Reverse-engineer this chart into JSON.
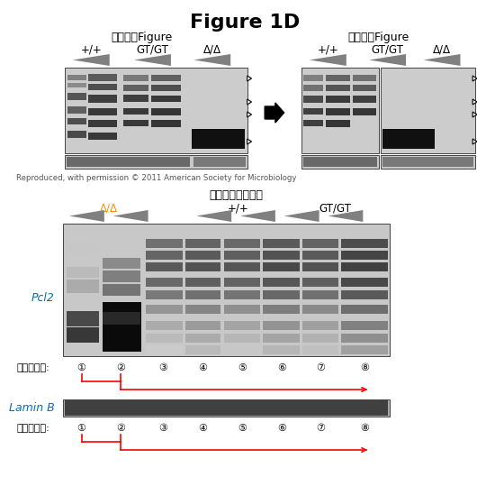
{
  "title": "Figure 1D",
  "title_fontsize": 16,
  "title_fontweight": "bold",
  "section1_label": "論文掛載Figure",
  "section2_label": "訂正したFigure",
  "orig_label": "オリジナルデータ",
  "genotype_labels": [
    "+/+",
    "GT/GT",
    "Δ/Δ"
  ],
  "genotype_labels_orig": [
    "Δ/Δ",
    "+/+",
    "GT/GT"
  ],
  "lane_label": "レーン番号:",
  "lane_numbers": [
    "①",
    "②",
    "③",
    "④",
    "⑤",
    "⑥",
    "⑦",
    "⑧"
  ],
  "pcl2_label": "Pcl2",
  "laminb_label": "Lamin B",
  "copyright_text": "Reproduced, with permission © 2011 American Society for Microbiology",
  "red_color": "#FF0000",
  "blue_color": "#0070C0",
  "black_color": "#000000",
  "gray_color": "#808080"
}
